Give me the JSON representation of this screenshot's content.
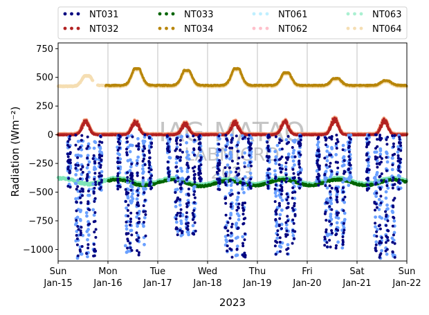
{
  "chart_data": {
    "type": "scatter",
    "title": "",
    "xlabel": "2023",
    "ylabel": "Radiation (Wm⁻²)",
    "ylim": [
      -1100,
      800
    ],
    "yticks": [
      750,
      500,
      250,
      0,
      -250,
      -500,
      -750,
      -1000
    ],
    "xlim": [
      "2023-01-15",
      "2023-01-22"
    ],
    "xticks": [
      {
        "date": "2023-01-15",
        "line1": "Sun",
        "line2": "Jan-15"
      },
      {
        "date": "2023-01-16",
        "line1": "Mon",
        "line2": "Jan-16"
      },
      {
        "date": "2023-01-17",
        "line1": "Tue",
        "line2": "Jan-17"
      },
      {
        "date": "2023-01-18",
        "line1": "Wed",
        "line2": "Jan-18"
      },
      {
        "date": "2023-01-19",
        "line1": "Thu",
        "line2": "Jan-19"
      },
      {
        "date": "2023-01-20",
        "line1": "Fri",
        "line2": "Jan-20"
      },
      {
        "date": "2023-01-21",
        "line1": "Sat",
        "line2": "Jan-21"
      },
      {
        "date": "2023-01-22",
        "line1": "Sun",
        "line2": "Jan-22"
      }
    ],
    "grid": "vertical lines at day ticks",
    "legend_position": "top",
    "watermark": [
      "IAG-MATAO",
      "LABMICRO",
      "2023"
    ],
    "series": [
      {
        "name": "NT031",
        "color": "#00007f",
        "typical": "nighttime ~0, daytime drops to about -500 to -1080",
        "daily_min": [
          -1080,
          -1060,
          -900,
          -1070,
          -1050,
          -1000,
          -1080
        ]
      },
      {
        "name": "NT032",
        "color": "#b22222",
        "typical": "~0 baseline with daytime bumps",
        "daily_peak": [
          120,
          120,
          100,
          110,
          120,
          140,
          130
        ]
      },
      {
        "name": "NT033",
        "color": "#006400",
        "typical": "about -440 to -380",
        "range": [
          -470,
          -360
        ]
      },
      {
        "name": "NT034",
        "color": "#b8860b",
        "typical": "~430 baseline with daytime peaks",
        "daily_peak": [
          520,
          575,
          560,
          575,
          540,
          490,
          470
        ]
      },
      {
        "name": "NT061",
        "color": "#bfefff",
        "typical": "close to NT031",
        "range": [
          -1080,
          0
        ]
      },
      {
        "name": "NT062",
        "color": "#ffc0cb",
        "typical": "close to NT032",
        "range": [
          -10,
          130
        ]
      },
      {
        "name": "NT063",
        "color": "#aaf0d1",
        "typical": "close to NT033",
        "range": [
          -470,
          -360
        ]
      },
      {
        "name": "NT064",
        "color": "#f5deb3",
        "typical": "close to NT034",
        "range": [
          420,
          575
        ]
      }
    ]
  }
}
